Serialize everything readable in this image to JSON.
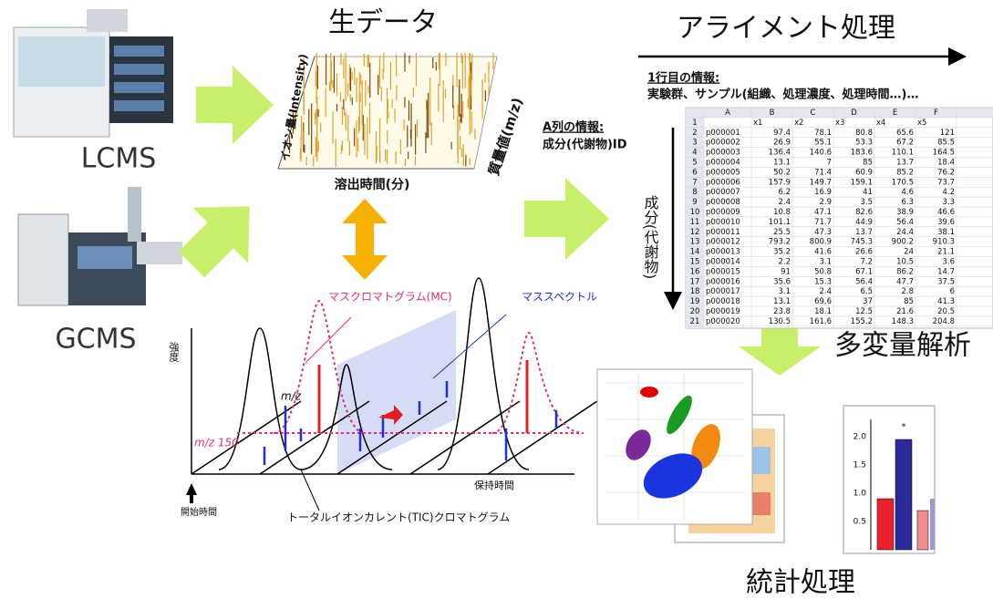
{
  "titles": {
    "raw_data": "生データ",
    "alignment": "アライメント処理",
    "multivariate": "多変量解析",
    "statistics": "統計処理"
  },
  "instruments": [
    "LCMS",
    "GCMS"
  ],
  "raw_plot": {
    "y_label": "イオン量(Intensity)",
    "z_label": "質量値(m/z)",
    "x_label": "溶出時間(分)"
  },
  "alignment": {
    "row1_heading": "1行目の情報:",
    "row1_info": "実験群、サンプル(組織、処理濃度、処理時間…)…",
    "column_heading": "A列の情報:",
    "column_info": "成分(代謝物)ID",
    "axis_label": "成分(代謝物)"
  },
  "spreadsheet": {
    "column_letters": [
      "A",
      "B",
      "C",
      "D",
      "E",
      "F"
    ],
    "row_numbers": [
      1,
      2,
      3,
      4,
      5,
      6,
      7,
      8,
      9,
      10,
      11,
      12,
      13,
      14,
      15,
      16,
      17,
      18,
      19,
      20,
      21
    ],
    "header": [
      "x1",
      "x2",
      "x3",
      "x4",
      "x5"
    ],
    "rows": [
      [
        "p000001",
        97.4,
        78.1,
        80.8,
        65.6,
        121
      ],
      [
        "p000002",
        26.9,
        55.1,
        53.3,
        67.2,
        85.5
      ],
      [
        "p000003",
        136.4,
        140.6,
        183.6,
        110.1,
        164.5
      ],
      [
        "p000004",
        13.1,
        7,
        85,
        13.7,
        18.4
      ],
      [
        "p000005",
        50.2,
        71.4,
        60.9,
        85.2,
        76.2
      ],
      [
        "p000006",
        157.9,
        149.7,
        159.1,
        170.5,
        73.7
      ],
      [
        "p000007",
        6.2,
        16.9,
        41,
        4.6,
        4.2
      ],
      [
        "p000008",
        2.4,
        2.9,
        3.5,
        6.3,
        3.3
      ],
      [
        "p000009",
        10.8,
        47.1,
        82.6,
        38.9,
        46.6
      ],
      [
        "p000010",
        101.1,
        71.7,
        44.9,
        56.4,
        39.6
      ],
      [
        "p000011",
        25.5,
        47.3,
        13.7,
        24.4,
        38.1
      ],
      [
        "p000012",
        793.2,
        800.9,
        745.3,
        900.2,
        910.3
      ],
      [
        "p000013",
        35.2,
        41.6,
        26.6,
        24,
        21.1
      ],
      [
        "p000014",
        2.2,
        3.1,
        7.2,
        10.5,
        3.6
      ],
      [
        "p000015",
        91,
        50.8,
        67.1,
        86.2,
        14.7
      ],
      [
        "p000016",
        35.6,
        15.3,
        56.4,
        47.7,
        37.5
      ],
      [
        "p000017",
        3.1,
        2.4,
        6.5,
        2.8,
        6
      ],
      [
        "p000018",
        13.1,
        69.6,
        37,
        85,
        41.3
      ],
      [
        "p000019",
        23.8,
        18.1,
        12.5,
        21.6,
        20.5
      ],
      [
        "p000020",
        130.5,
        161.6,
        155.2,
        148.3,
        204.8
      ]
    ]
  },
  "chromatogram": {
    "mc_label": "マスクロマトグラム(MC)",
    "ms_label": "マススペクトル",
    "intensity_label": "強度",
    "mz_label": "m/z",
    "mz150_label": "m/z 150",
    "retention_label": "保持時間",
    "start_label": "開始時間",
    "tic_label": "トータルイオンカレント(TIC)クロマトグラム"
  },
  "bar_chart": {
    "tick_labels": [
      "2.0",
      "1.5",
      "1.0",
      "0.5"
    ],
    "significance": "*"
  }
}
